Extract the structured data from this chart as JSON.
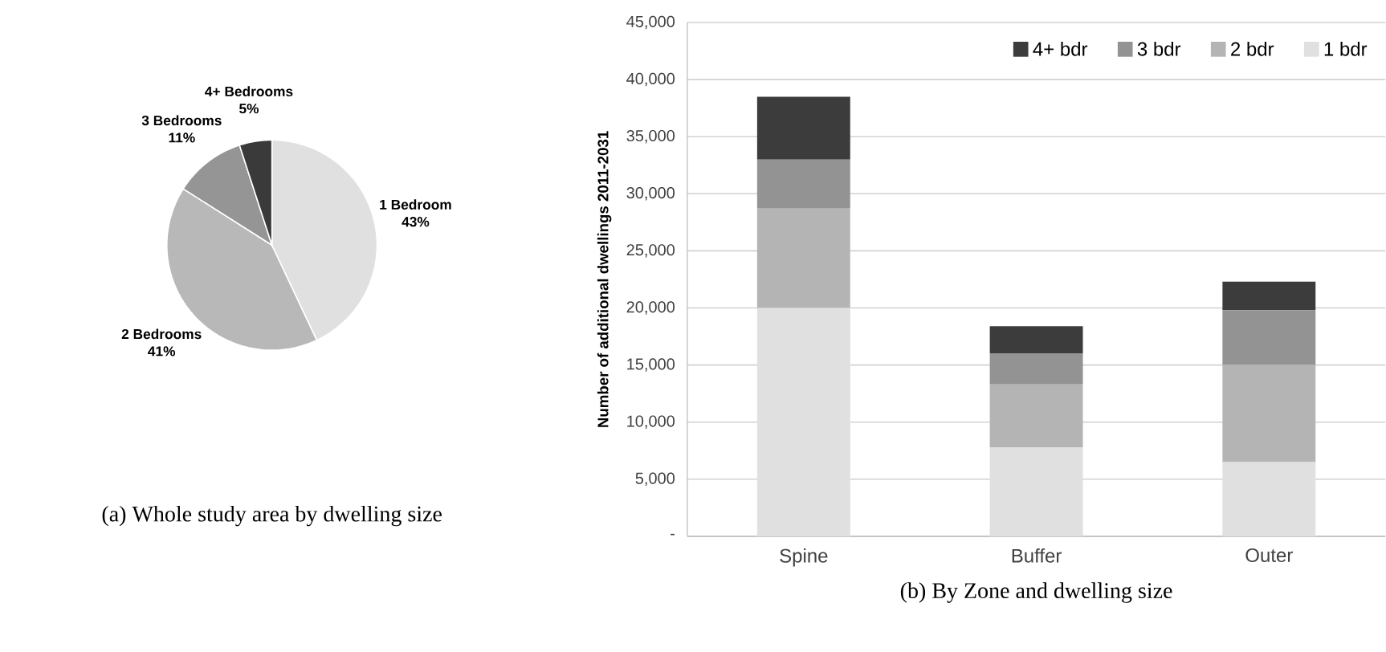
{
  "chart_data": [
    {
      "type": "pie",
      "title": "(a) Whole study area by dwelling size",
      "categories": [
        "1 Bedroom",
        "2 Bedrooms",
        "3 Bedrooms",
        "4+ Bedrooms"
      ],
      "values": [
        43,
        41,
        11,
        5
      ],
      "value_labels": [
        "43%",
        "41%",
        "11%",
        "5%"
      ],
      "colors": [
        "#e0e0e0",
        "#b8b8b8",
        "#959595",
        "#3a3a3a"
      ]
    },
    {
      "type": "bar",
      "title": "(b) By Zone and dwelling size",
      "ylabel": "Number of additional dwellings 2011-2031",
      "categories": [
        "Spine",
        "Buffer",
        "Outer"
      ],
      "stacked": true,
      "series": [
        {
          "name": "1 bdr",
          "color": "#e0e0e0",
          "values": [
            20000,
            7800,
            6500
          ]
        },
        {
          "name": "2 bdr",
          "color": "#b4b4b4",
          "values": [
            8700,
            5500,
            8500
          ]
        },
        {
          "name": "3 bdr",
          "color": "#939393",
          "values": [
            4300,
            2700,
            4800
          ]
        },
        {
          "name": "4+ bdr",
          "color": "#3c3c3c",
          "values": [
            5500,
            2400,
            2500
          ]
        }
      ],
      "ylim": [
        0,
        45000
      ],
      "yticks": [
        {
          "value": 0,
          "label": "-"
        },
        {
          "value": 5000,
          "label": "5,000"
        },
        {
          "value": 10000,
          "label": "10,000"
        },
        {
          "value": 15000,
          "label": "15,000"
        },
        {
          "value": 20000,
          "label": "20,000"
        },
        {
          "value": 25000,
          "label": "25,000"
        },
        {
          "value": 30000,
          "label": "30,000"
        },
        {
          "value": 35000,
          "label": "35,000"
        },
        {
          "value": 40000,
          "label": "40,000"
        },
        {
          "value": 45000,
          "label": "45,000"
        }
      ],
      "grid": "y",
      "legend": "top right"
    }
  ]
}
